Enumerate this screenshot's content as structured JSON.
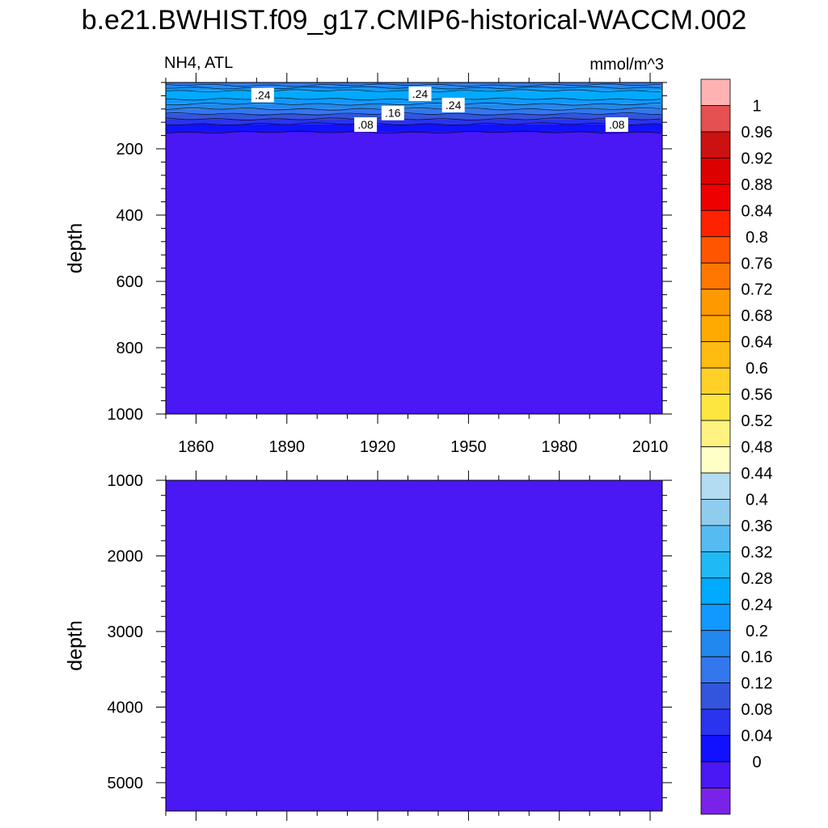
{
  "title": "b.e21.BWHIST.f09_g17.CMIP6-historical-WACCM.002",
  "chart_data": [
    {
      "type": "heatmap",
      "panel": "upper",
      "left_label": "NH4, ATL",
      "right_label": "mmol/m^3",
      "ylabel": "depth",
      "xlabel": "",
      "x_ticks": [
        "1860",
        "1890",
        "1920",
        "1950",
        "1980",
        "2010"
      ],
      "x_tick_values": [
        1860,
        1890,
        1920,
        1950,
        1980,
        2010
      ],
      "xlim": [
        1850,
        2014
      ],
      "y_ticks": [
        "200",
        "400",
        "600",
        "800",
        "1000"
      ],
      "y_tick_values": [
        200,
        400,
        600,
        800,
        1000
      ],
      "ylim": [
        0,
        1000
      ],
      "y_reversed": true,
      "layers": [
        {
          "top": 0,
          "bottom": 8,
          "value": 0.18
        },
        {
          "top": 8,
          "bottom": 16,
          "value": 0.22
        },
        {
          "top": 16,
          "bottom": 25,
          "value": 0.26
        },
        {
          "top": 25,
          "bottom": 50,
          "value": 0.3
        },
        {
          "top": 50,
          "bottom": 65,
          "value": 0.26
        },
        {
          "top": 65,
          "bottom": 80,
          "value": 0.22
        },
        {
          "top": 80,
          "bottom": 95,
          "value": 0.18
        },
        {
          "top": 95,
          "bottom": 110,
          "value": 0.14
        },
        {
          "top": 110,
          "bottom": 125,
          "value": 0.1
        },
        {
          "top": 125,
          "bottom": 150,
          "value": 0.06
        },
        {
          "top": 150,
          "bottom": 1000,
          "value": 0.02
        }
      ],
      "contour_labels": [
        {
          "text": ".24",
          "x": 1882,
          "y": 38
        },
        {
          "text": ".24",
          "x": 1934,
          "y": 34
        },
        {
          "text": ".24",
          "x": 1945,
          "y": 68
        },
        {
          "text": ".16",
          "x": 1925,
          "y": 92
        },
        {
          "text": ".08",
          "x": 1916,
          "y": 127
        },
        {
          "text": ".08",
          "x": 1999,
          "y": 127
        }
      ]
    },
    {
      "type": "heatmap",
      "panel": "lower",
      "ylabel": "depth",
      "xlabel": "",
      "y_ticks": [
        "1000",
        "2000",
        "3000",
        "4000",
        "5000"
      ],
      "y_tick_values": [
        1000,
        2000,
        3000,
        4000,
        5000
      ],
      "ylim": [
        1000,
        5375
      ],
      "xlim": [
        1850,
        2014
      ],
      "y_reversed": true,
      "layers": [
        {
          "top": 1000,
          "bottom": 5375,
          "value": 0.02
        }
      ]
    }
  ],
  "colorbar": {
    "labels": [
      "1",
      "0.96",
      "0.92",
      "0.88",
      "0.84",
      "0.8",
      "0.76",
      "0.72",
      "0.68",
      "0.64",
      "0.6",
      "0.56",
      "0.52",
      "0.48",
      "0.44",
      "0.4",
      "0.36",
      "0.32",
      "0.28",
      "0.24",
      "0.2",
      "0.16",
      "0.12",
      "0.08",
      "0.04",
      "0"
    ],
    "colors": [
      "#ffb2b2",
      "#e55050",
      "#cc1111",
      "#dd0000",
      "#ee0000",
      "#ff2200",
      "#ff5500",
      "#ff7700",
      "#ff9900",
      "#ffaa00",
      "#ffbb11",
      "#ffd028",
      "#ffe540",
      "#fff280",
      "#ffffc6",
      "#b2dcf2",
      "#90ccee",
      "#55bbf0",
      "#1fbaf5",
      "#00aaff",
      "#1199ff",
      "#2288ee",
      "#3377ee",
      "#3355dd",
      "#2a33ee",
      "#1111ff",
      "#4a17f5",
      "#7b22e8"
    ]
  }
}
